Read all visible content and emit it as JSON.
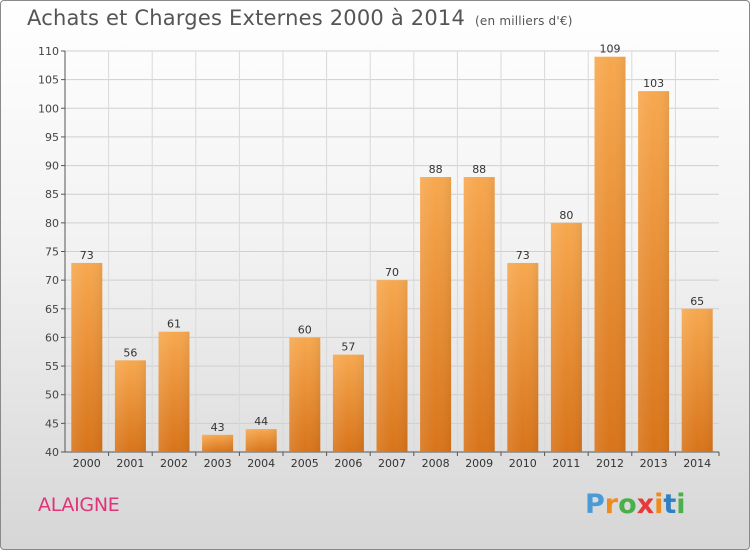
{
  "chart_data": {
    "type": "bar",
    "title": "Achats et Charges Externes 2000 à 2014",
    "subtitle": "(en milliers d'€)",
    "categories": [
      "2000",
      "2001",
      "2002",
      "2003",
      "2004",
      "2005",
      "2006",
      "2007",
      "2008",
      "2009",
      "2010",
      "2011",
      "2012",
      "2013",
      "2014"
    ],
    "values": [
      73,
      56,
      61,
      43,
      44,
      60,
      57,
      70,
      88,
      88,
      73,
      80,
      109,
      103,
      65
    ],
    "ylim": [
      40,
      110
    ],
    "yticks": [
      40,
      45,
      50,
      55,
      60,
      65,
      70,
      75,
      80,
      85,
      90,
      95,
      100,
      105,
      110
    ],
    "grid": true,
    "bar_color": "#f0952f",
    "data_labels": true
  },
  "commune": "ALAIGNE",
  "logo": {
    "letters": [
      "P",
      "r",
      "o",
      "x",
      "i",
      "t",
      "i"
    ],
    "colors": [
      "#4a9ad6",
      "#f08a1c",
      "#4bb04b",
      "#e63a3a",
      "#f08a1c",
      "#2f7fc1",
      "#4bb04b"
    ]
  }
}
